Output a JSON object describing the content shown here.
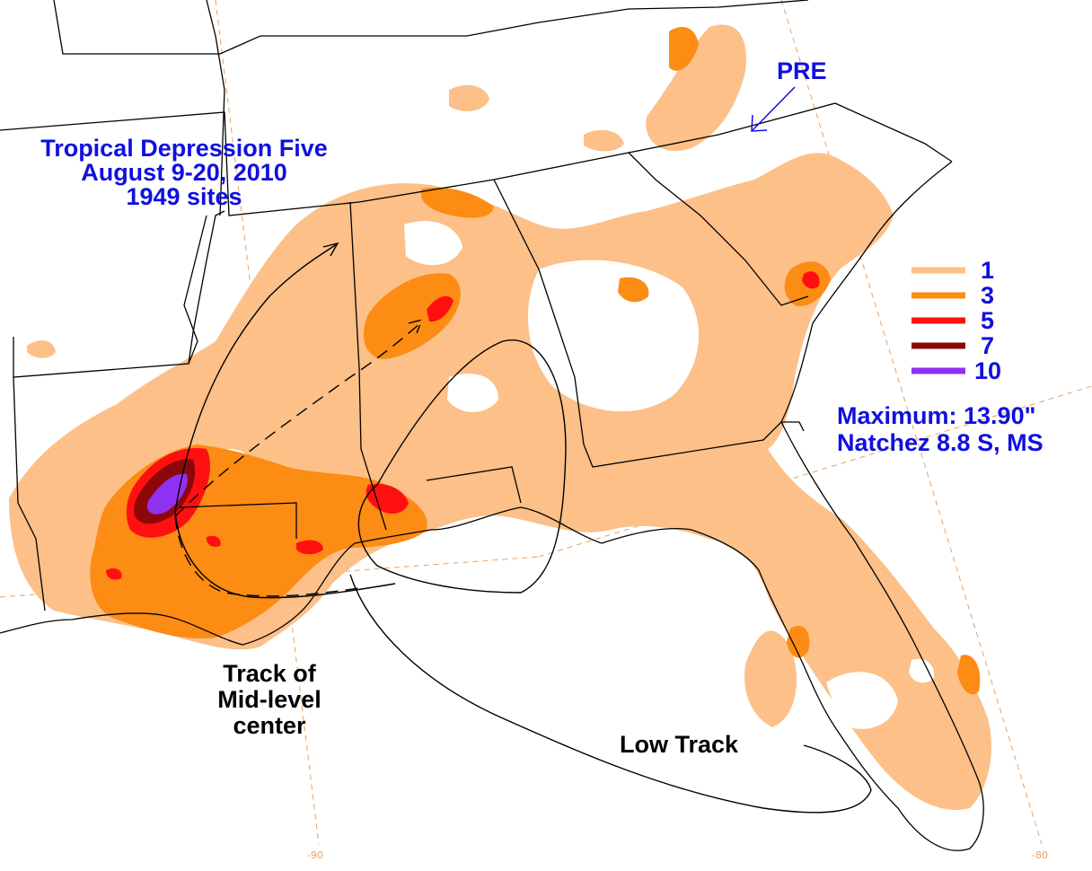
{
  "title": {
    "line1": "Tropical Depression Five",
    "line2": "August 9-20, 2010",
    "line3": "1949 sites"
  },
  "annotations": {
    "pre": "PRE",
    "track_mid_1": "Track of",
    "track_mid_2": "Mid-level",
    "track_mid_3": "center",
    "low_track": "Low Track"
  },
  "legend": {
    "items": [
      {
        "label": "1",
        "color": "#fcc088"
      },
      {
        "label": "3",
        "color": "#fc8c14"
      },
      {
        "label": "5",
        "color": "#ff1010"
      },
      {
        "label": "7",
        "color": "#8c0808"
      },
      {
        "label": "10",
        "color": "#9030f0"
      }
    ]
  },
  "maximum": {
    "value_line": "Maximum:  13.90\"",
    "location_line": "Natchez 8.8 S, MS"
  },
  "grid_ticks": {
    "lon_90": "-90",
    "lon_80": "-80"
  },
  "colors": {
    "text_blue": "#1010e0",
    "graticule": "#e8a060"
  }
}
